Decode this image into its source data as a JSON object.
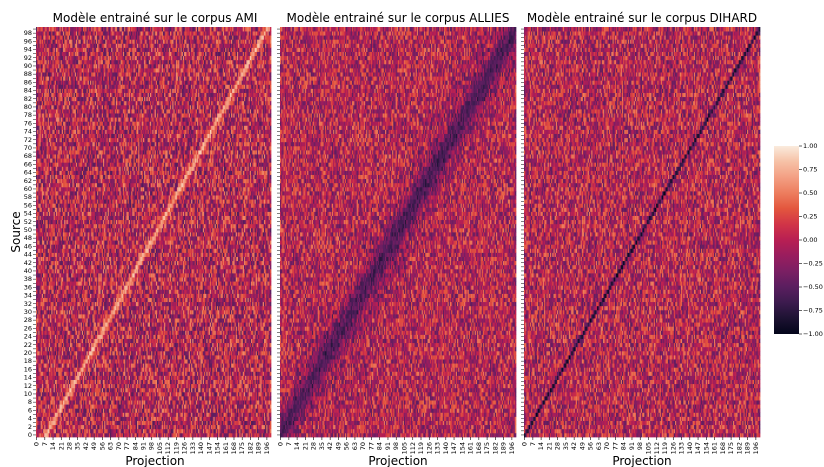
{
  "chart_data": [
    {
      "type": "heatmap",
      "title": "Modèle entrainé sur le corpus AMI",
      "xlabel": "Projection",
      "ylabel": "Source",
      "n_cols": 200,
      "n_rows": 100,
      "x_tick_labels": [
        "0",
        "7",
        "14",
        "21",
        "28",
        "35",
        "42",
        "49",
        "56",
        "63",
        "70",
        "77",
        "84",
        "91",
        "98",
        "105",
        "112",
        "119",
        "126",
        "133",
        "140",
        "147",
        "154",
        "161",
        "168",
        "175",
        "182",
        "189",
        "196"
      ],
      "y_tick_labels": [
        "0",
        "2",
        "4",
        "6",
        "8",
        "10",
        "12",
        "14",
        "16",
        "18",
        "20",
        "22",
        "24",
        "26",
        "28",
        "30",
        "32",
        "34",
        "36",
        "38",
        "40",
        "42",
        "44",
        "46",
        "48",
        "50",
        "52",
        "54",
        "56",
        "58",
        "60",
        "62",
        "64",
        "66",
        "68",
        "70",
        "72",
        "74",
        "76",
        "78",
        "80",
        "82",
        "84",
        "86",
        "88",
        "90",
        "92",
        "94",
        "96",
        "98"
      ],
      "background_value": 0.0,
      "diagonal": {
        "value": 0.75,
        "sharpness": "medium",
        "x_at_source_0": 8,
        "x_at_source_99": 196
      }
    },
    {
      "type": "heatmap",
      "title": "Modèle entrainé sur le corpus ALLIES",
      "xlabel": "Projection",
      "ylabel": "",
      "n_cols": 200,
      "n_rows": 100,
      "x_tick_labels": [
        "0",
        "7",
        "14",
        "21",
        "28",
        "35",
        "42",
        "49",
        "56",
        "63",
        "70",
        "77",
        "84",
        "91",
        "98",
        "105",
        "112",
        "119",
        "126",
        "133",
        "140",
        "147",
        "154",
        "161",
        "168",
        "175",
        "182",
        "189",
        "196"
      ],
      "background_value": 0.0,
      "diagonal": {
        "value": -0.45,
        "sharpness": "diffuse",
        "x_at_source_0": 0,
        "x_at_source_99": 199
      }
    },
    {
      "type": "heatmap",
      "title": "Modèle entrainé sur le corpus DIHARD",
      "xlabel": "Projection",
      "ylabel": "",
      "n_cols": 200,
      "n_rows": 100,
      "x_tick_labels": [
        "0",
        "7",
        "14",
        "21",
        "28",
        "35",
        "42",
        "49",
        "56",
        "63",
        "70",
        "77",
        "84",
        "91",
        "98",
        "105",
        "112",
        "119",
        "126",
        "133",
        "140",
        "147",
        "154",
        "161",
        "168",
        "175",
        "182",
        "189",
        "196"
      ],
      "background_value": 0.0,
      "diagonal": {
        "value": -0.9,
        "sharpness": "sharp",
        "x_at_source_0": 0,
        "x_at_source_99": 199
      }
    }
  ],
  "colorbar": {
    "min": -1.0,
    "max": 1.0,
    "tick_labels": [
      "1.00",
      "0.75",
      "0.50",
      "0.25",
      "0.00",
      "−0.25",
      "−0.50",
      "−0.75",
      "−1.00"
    ],
    "colormap": "rocket",
    "stops": [
      "#03051a",
      "#1d1232",
      "#3c1b4e",
      "#5a1e5f",
      "#7a1f63",
      "#991d5e",
      "#b81f53",
      "#d13447",
      "#e3563e",
      "#ed7d5e",
      "#f39f83",
      "#f6c1a6",
      "#faebdd"
    ]
  }
}
